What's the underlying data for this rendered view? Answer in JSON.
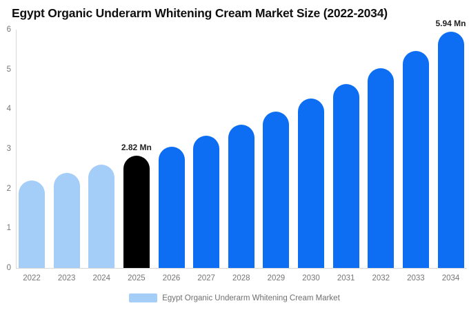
{
  "header": {
    "title": "Egypt Organic Underarm Whitening Cream Market Size (2022-2034)"
  },
  "chart_data": {
    "type": "bar",
    "title": "Egypt Organic Underarm Whitening Cream Market Size (2022-2034)",
    "categories": [
      "2022",
      "2023",
      "2024",
      "2025",
      "2026",
      "2027",
      "2028",
      "2029",
      "2030",
      "2031",
      "2032",
      "2033",
      "2034"
    ],
    "values": [
      2.2,
      2.39,
      2.6,
      2.82,
      3.06,
      3.33,
      3.61,
      3.93,
      4.27,
      4.63,
      5.03,
      5.47,
      5.94
    ],
    "unit": "Mn",
    "bar_colors": [
      "#A4CDF8",
      "#A4CDF8",
      "#A4CDF8",
      "#000000",
      "#0D6EF3",
      "#0D6EF3",
      "#0D6EF3",
      "#0D6EF3",
      "#0D6EF3",
      "#0D6EF3",
      "#0D6EF3",
      "#0D6EF3",
      "#0D6EF3"
    ],
    "data_labels": [
      {
        "category": "2025",
        "text": "2.82 Mn"
      },
      {
        "category": "2034",
        "text": "5.94 Mn"
      }
    ],
    "xlabel": "",
    "ylabel": "",
    "ylim": [
      0,
      6
    ],
    "yticks": [
      "0",
      "1",
      "2",
      "3",
      "4",
      "5",
      "6"
    ],
    "grid": false,
    "legend": {
      "label": "Egypt Organic Underarm Whitening Cream Market",
      "swatch_color": "#A4CDF8",
      "position": "bottom-center"
    }
  },
  "colors": {
    "historical_bar": "#A4CDF8",
    "base_year_bar": "#000000",
    "forecast_bar": "#0D6EF3",
    "axis_line": "#D8D8D8",
    "tick_label": "#757575",
    "data_label": "#222222",
    "legend_text": "#6F6F6F",
    "background": "#FFFFFF"
  }
}
